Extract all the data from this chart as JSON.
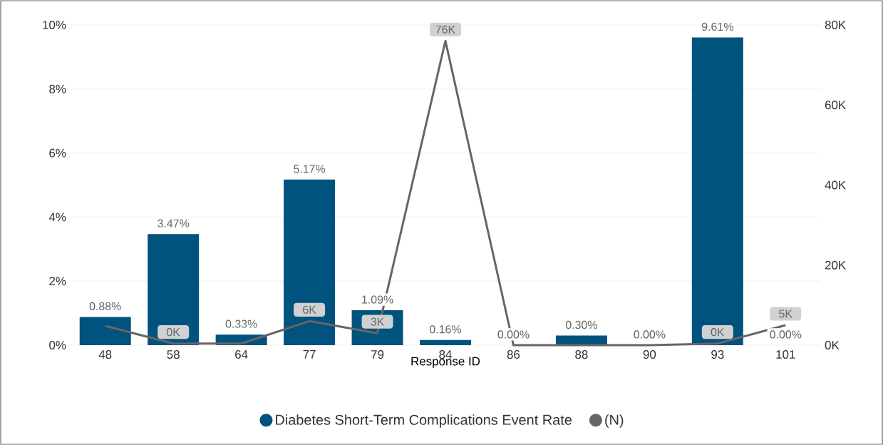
{
  "chart_data": {
    "type": "bar",
    "xlabel": "Response ID",
    "categories": [
      "48",
      "58",
      "64",
      "77",
      "79",
      "84",
      "86",
      "88",
      "90",
      "93",
      "101"
    ],
    "series": [
      {
        "name": "Diabetes Short-Term Complications Event Rate",
        "color": "#00527f",
        "values": [
          0.88,
          3.47,
          0.33,
          5.17,
          1.09,
          0.16,
          0.0,
          0.3,
          0.0,
          9.61,
          0.0
        ],
        "value_labels": [
          "0.88%",
          "3.47%",
          "0.33%",
          "5.17%",
          "1.09%",
          "0.16%",
          "0.00%",
          "0.30%",
          "0.00%",
          "9.61%",
          "0.00%"
        ]
      },
      {
        "name": "(N)",
        "type": "line",
        "axis": "y2",
        "color": "#666666",
        "values": [
          4800,
          400,
          400,
          6000,
          3000,
          76000,
          0,
          0,
          0,
          400,
          5000
        ],
        "value_labels": [
          null,
          "0K",
          null,
          "6K",
          "3K",
          "76K",
          null,
          null,
          null,
          "0K",
          "5K"
        ]
      }
    ],
    "ylim": [
      0,
      10
    ],
    "yticks": [
      {
        "value": 0,
        "label": "0%"
      },
      {
        "value": 2,
        "label": "2%"
      },
      {
        "value": 4,
        "label": "4%"
      },
      {
        "value": 6,
        "label": "6%"
      },
      {
        "value": 8,
        "label": "8%"
      },
      {
        "value": 10,
        "label": "10%"
      }
    ],
    "y2lim": [
      0,
      80000
    ],
    "y2ticks": [
      {
        "value": 0,
        "label": "0K"
      },
      {
        "value": 20000,
        "label": "20K"
      },
      {
        "value": 40000,
        "label": "40K"
      },
      {
        "value": 60000,
        "label": "60K"
      },
      {
        "value": 80000,
        "label": "80K"
      }
    ],
    "grid": "y",
    "legend": "bottom"
  }
}
